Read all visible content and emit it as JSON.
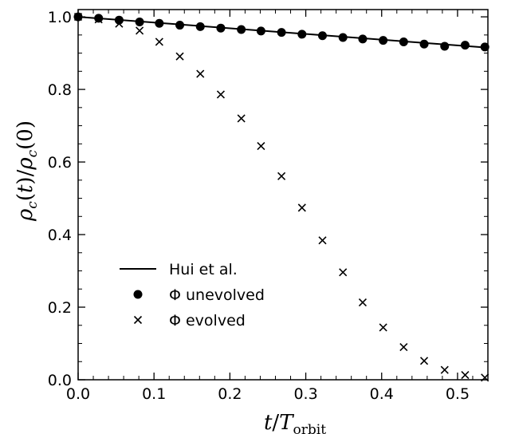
{
  "chart_data": {
    "type": "scatter",
    "xlabel": "t/T_orbit",
    "ylabel": "ρ_c(t)/ρ_c(0)",
    "xlim": [
      0.0,
      0.54
    ],
    "ylim": [
      0.0,
      1.02
    ],
    "x_ticks": [
      "0.0",
      "0.1",
      "0.2",
      "0.3",
      "0.4",
      "0.5"
    ],
    "y_ticks": [
      "0.0",
      "0.2",
      "0.4",
      "0.6",
      "0.8",
      "1.0"
    ],
    "grid": false,
    "legend_position": "lower-left",
    "series": [
      {
        "name": "Hui et al.",
        "kind": "line",
        "x": [
          0.0,
          0.54
        ],
        "y": [
          1.0,
          0.915
        ]
      },
      {
        "name": "Φ unevolved",
        "kind": "circle",
        "x": [
          0.0,
          0.027,
          0.054,
          0.081,
          0.107,
          0.134,
          0.161,
          0.188,
          0.215,
          0.241,
          0.268,
          0.295,
          0.322,
          0.349,
          0.375,
          0.402,
          0.429,
          0.456,
          0.483,
          0.51,
          0.536
        ],
        "y": [
          1.0,
          0.996,
          0.991,
          0.986,
          0.982,
          0.977,
          0.973,
          0.969,
          0.965,
          0.961,
          0.957,
          0.952,
          0.948,
          0.943,
          0.939,
          0.935,
          0.931,
          0.925,
          0.919,
          0.922,
          0.917
        ]
      },
      {
        "name": "Φ evolved",
        "kind": "cross",
        "x": [
          0.0,
          0.027,
          0.054,
          0.081,
          0.107,
          0.134,
          0.161,
          0.188,
          0.215,
          0.241,
          0.268,
          0.295,
          0.322,
          0.349,
          0.375,
          0.402,
          0.429,
          0.456,
          0.483,
          0.51,
          0.536
        ],
        "y": [
          1.0,
          0.993,
          0.981,
          0.962,
          0.931,
          0.891,
          0.843,
          0.786,
          0.72,
          0.644,
          0.561,
          0.474,
          0.384,
          0.296,
          0.213,
          0.144,
          0.09,
          0.052,
          0.027,
          0.013,
          0.006
        ]
      }
    ]
  }
}
